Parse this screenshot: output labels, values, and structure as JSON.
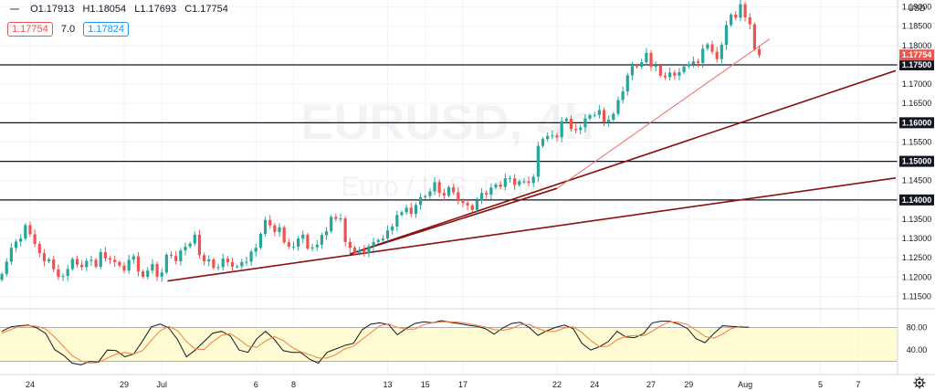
{
  "header": {
    "open": "O1.17913",
    "high": "H1.18054",
    "low": "L1.17693",
    "close": "C1.17754"
  },
  "quote": {
    "bid": "1.17754",
    "spread": "7.0",
    "ask": "1.17824"
  },
  "watermark": {
    "symbol": "EURUSD, 4h",
    "description": "Euro / U.S. Dollar"
  },
  "colors": {
    "up": "#26a69a",
    "down": "#ef5350",
    "trendline_dark": "#8b1010",
    "trendline_light": "#f26b6b",
    "stoch_k": "#131722",
    "stoch_d": "#f57c3c",
    "stoch_band": "#fff9c4"
  },
  "chart_data": [
    {
      "type": "candlestick",
      "currency_label": "USD",
      "ylim": [
        1.1118,
        1.1918
      ],
      "y_ticks": [
        "1.19000",
        "1.18500",
        "1.18000",
        "1.17500",
        "1.17000",
        "1.16500",
        "1.16000",
        "1.15500",
        "1.15000",
        "1.14500",
        "1.14000",
        "1.13500",
        "1.13000",
        "1.12500",
        "1.12000",
        "1.11500"
      ],
      "x_ticks": [
        {
          "label": "24",
          "day": 2
        },
        {
          "label": "29",
          "day": 7
        },
        {
          "label": "Jul",
          "day": 9
        },
        {
          "label": "6",
          "day": 14
        },
        {
          "label": "8",
          "day": 16
        },
        {
          "label": "13",
          "day": 21
        },
        {
          "label": "15",
          "day": 23
        },
        {
          "label": "17",
          "day": 25
        },
        {
          "label": "22",
          "day": 30
        },
        {
          "label": "24",
          "day": 32
        },
        {
          "label": "27",
          "day": 35
        },
        {
          "label": "29",
          "day": 37
        },
        {
          "label": "Aug",
          "day": 40
        },
        {
          "label": "5",
          "day": 44
        },
        {
          "label": "7",
          "day": 46
        }
      ],
      "candles_close": [
        1.1208,
        1.124,
        1.1276,
        1.1292,
        1.13,
        1.1335,
        1.1311,
        1.1286,
        1.1262,
        1.1241,
        1.1246,
        1.122,
        1.1201,
        1.1203,
        1.1221,
        1.1247,
        1.1232,
        1.1226,
        1.1242,
        1.1245,
        1.1227,
        1.1265,
        1.1249,
        1.1245,
        1.1239,
        1.123,
        1.1217,
        1.1245,
        1.1254,
        1.1215,
        1.1201,
        1.1217,
        1.1234,
        1.1201,
        1.1212,
        1.1258,
        1.1255,
        1.1241,
        1.1269,
        1.1279,
        1.1287,
        1.131,
        1.1257,
        1.1241,
        1.1246,
        1.1224,
        1.1226,
        1.1248,
        1.1239,
        1.1227,
        1.1228,
        1.1239,
        1.124,
        1.1266,
        1.1276,
        1.1312,
        1.1348,
        1.1334,
        1.1317,
        1.1329,
        1.129,
        1.1279,
        1.1279,
        1.13,
        1.131,
        1.1274,
        1.1277,
        1.1284,
        1.1309,
        1.1319,
        1.1356,
        1.1351,
        1.1352,
        1.1291,
        1.1276,
        1.1263,
        1.127,
        1.1262,
        1.128,
        1.1291,
        1.1296,
        1.13,
        1.1321,
        1.1331,
        1.1361,
        1.1368,
        1.138,
        1.1364,
        1.1387,
        1.1407,
        1.141,
        1.1422,
        1.1446,
        1.1418,
        1.1411,
        1.1433,
        1.142,
        1.1397,
        1.1392,
        1.1386,
        1.1374,
        1.1398,
        1.1418,
        1.1414,
        1.1432,
        1.144,
        1.1434,
        1.1456,
        1.1456,
        1.1439,
        1.1448,
        1.1448,
        1.1444,
        1.146,
        1.154,
        1.1558,
        1.1566,
        1.1567,
        1.1562,
        1.1604,
        1.161,
        1.1584,
        1.1581,
        1.1588,
        1.1611,
        1.162,
        1.162,
        1.1633,
        1.1602,
        1.1608,
        1.1623,
        1.1659,
        1.1681,
        1.1723,
        1.1747,
        1.1745,
        1.1757,
        1.1781,
        1.1745,
        1.1748,
        1.1722,
        1.1718,
        1.173,
        1.1722,
        1.1731,
        1.1746,
        1.1751,
        1.1759,
        1.1755,
        1.1792,
        1.1803,
        1.1784,
        1.1765,
        1.1802,
        1.1853,
        1.188,
        1.1872,
        1.1907,
        1.1873,
        1.1855,
        1.1791,
        1.1775
      ],
      "horizontal_levels": [
        "1.17500",
        "1.16000",
        "1.15000",
        "1.14000"
      ],
      "current_price": "1.17754",
      "trendlines": [
        {
          "from": [
            9.3,
            1.119
          ],
          "to": [
            48.0,
            1.1457
          ],
          "style": "dark"
        },
        {
          "from": [
            19.0,
            1.126
          ],
          "to": [
            48.0,
            1.1735
          ],
          "style": "dark"
        },
        {
          "from": [
            19.0,
            1.126
          ],
          "to": [
            30.0,
            1.143
          ],
          "style": "dark"
        },
        {
          "from": [
            30.0,
            1.143
          ],
          "to": [
            41.3,
            1.1817
          ],
          "style": "light"
        }
      ]
    },
    {
      "type": "line",
      "indicator": "stochastic",
      "ylim": [
        0,
        100
      ],
      "y_ticks": [
        "80.00",
        "40.00"
      ],
      "band": [
        20,
        80
      ],
      "series": [
        {
          "role": "k",
          "values": [
            73,
            81,
            83,
            84,
            79,
            69,
            41,
            31,
            17,
            14,
            20,
            19,
            40,
            39,
            28,
            33,
            56,
            81,
            86,
            79,
            58,
            28,
            40,
            55,
            70,
            73,
            65,
            40,
            36,
            60,
            73,
            59,
            39,
            36,
            36,
            24,
            17,
            36,
            42,
            48,
            52,
            76,
            86,
            88,
            85,
            67,
            78,
            87,
            90,
            88,
            92,
            89,
            87,
            84,
            82,
            78,
            68,
            79,
            87,
            89,
            80,
            66,
            74,
            80,
            84,
            78,
            52,
            40,
            46,
            55,
            73,
            63,
            62,
            69,
            88,
            91,
            91,
            86,
            78,
            60,
            53,
            69,
            83,
            82,
            81,
            80
          ]
        },
        {
          "role": "d",
          "values": [
            70,
            76,
            82,
            83,
            82,
            77,
            63,
            47,
            30,
            21,
            17,
            18,
            26,
            33,
            36,
            33,
            39,
            57,
            74,
            82,
            74,
            55,
            42,
            41,
            55,
            66,
            69,
            59,
            47,
            45,
            56,
            64,
            57,
            45,
            37,
            32,
            26,
            26,
            32,
            42,
            47,
            59,
            71,
            83,
            86,
            80,
            77,
            77,
            85,
            88,
            90,
            90,
            89,
            87,
            84,
            81,
            76,
            75,
            78,
            85,
            85,
            78,
            73,
            73,
            79,
            81,
            71,
            57,
            46,
            47,
            58,
            64,
            66,
            65,
            73,
            83,
            90,
            89,
            85,
            75,
            64,
            61,
            68,
            78,
            82,
            81
          ]
        }
      ]
    }
  ]
}
